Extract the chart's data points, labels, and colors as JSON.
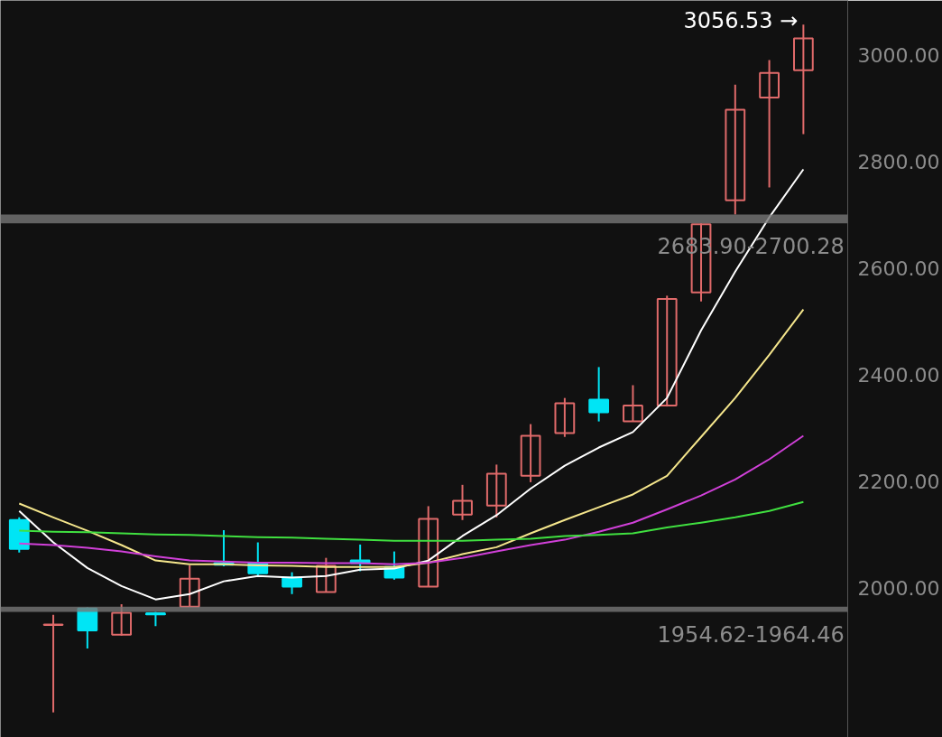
{
  "chart_data": {
    "type": "candlestick",
    "categories": [
      null,
      null,
      null,
      null,
      null,
      null,
      null,
      null,
      null,
      null,
      null,
      null,
      null,
      null,
      null,
      null,
      null,
      null,
      null,
      null,
      null,
      null,
      null,
      null
    ],
    "ohlc": [
      [
        2127,
        2132,
        2066,
        2073
      ],
      [
        1930,
        1949,
        1766,
        1931
      ],
      [
        1961,
        1963,
        1886,
        1920
      ],
      [
        1912,
        1969,
        1910,
        1953
      ],
      [
        1952,
        1954.62,
        1928,
        1950
      ],
      [
        1964.46,
        2042,
        1964.46,
        2017
      ],
      [
        2046,
        2108,
        2040,
        2043
      ],
      [
        2046,
        2085,
        2022,
        2027
      ],
      [
        2019,
        2029,
        1988,
        2002
      ],
      [
        1992,
        2056,
        1992,
        2041
      ],
      [
        2051,
        2081,
        2031,
        2046
      ],
      [
        2039,
        2068,
        2015,
        2019
      ],
      [
        2002,
        2153,
        2002,
        2129
      ],
      [
        2137,
        2193,
        2127,
        2163
      ],
      [
        2154,
        2231,
        2132,
        2214
      ],
      [
        2210,
        2307,
        2198,
        2285
      ],
      [
        2290,
        2356,
        2283,
        2346
      ],
      [
        2353,
        2414,
        2312,
        2329
      ],
      [
        2312,
        2380,
        2312,
        2342
      ],
      [
        2342,
        2548,
        2340,
        2542
      ],
      [
        2554,
        2683.9,
        2537,
        2682
      ],
      [
        2727,
        2944,
        2700.28,
        2897
      ],
      [
        2920,
        2990,
        2751,
        2966
      ],
      [
        2971,
        3056.53,
        2851,
        3031
      ]
    ],
    "colors": [
      "#00e5f5",
      "#e06a6a",
      "#00e5f5",
      "#e06a6a",
      "#00e5f5",
      "#e06a6a",
      "#00e5f5",
      "#00e5f5",
      "#00e5f5",
      "#e06a6a",
      "#00e5f5",
      "#00e5f5",
      "#e06a6a",
      "#e06a6a",
      "#e06a6a",
      "#e06a6a",
      "#e06a6a",
      "#00e5f5",
      "#e06a6a",
      "#e06a6a",
      "#e06a6a",
      "#e06a6a",
      "#e06a6a",
      "#e06a6a"
    ],
    "series": [
      {
        "type": "line",
        "color": "#ffffff",
        "values": [
          2144,
          2085,
          2037,
          2003,
          1978,
          1988,
          2012,
          2022,
          2019,
          2022,
          2034,
          2036,
          2051,
          2097,
          2136,
          2186,
          2229,
          2263,
          2292,
          2356,
          2483,
          2593,
          2695,
          2785
        ]
      },
      {
        "type": "line",
        "color": "#f5e68c",
        "values": [
          2158,
          2132,
          2107,
          2080,
          2051,
          2044,
          2044,
          2042,
          2041,
          2039,
          2039,
          2039,
          2047,
          2063,
          2076,
          2102,
          2127,
          2151,
          2175,
          2210,
          2283,
          2356,
          2437,
          2522
        ]
      },
      {
        "type": "line",
        "color": "#d040d8",
        "values": [
          2083,
          2080,
          2075,
          2068,
          2059,
          2051,
          2049,
          2047,
          2047,
          2046,
          2046,
          2044,
          2047,
          2056,
          2068,
          2080,
          2090,
          2105,
          2122,
          2147,
          2173,
          2203,
          2241,
          2285
        ]
      },
      {
        "type": "line",
        "color": "#40e040",
        "values": [
          2107,
          2105,
          2104,
          2102,
          2100,
          2099,
          2097,
          2095,
          2094,
          2092,
          2090,
          2088,
          2088,
          2088,
          2090,
          2092,
          2097,
          2099,
          2102,
          2113,
          2122,
          2132,
          2144,
          2161
        ]
      }
    ],
    "ylim": [
      1719,
      3102
    ],
    "yticks": [
      {
        "value": 2000,
        "label": "2000.00"
      },
      {
        "value": 2200,
        "label": "2200.00"
      },
      {
        "value": 2400,
        "label": "2400.00"
      },
      {
        "value": 2600,
        "label": "2600.00"
      },
      {
        "value": 2800,
        "label": "2800.00"
      },
      {
        "value": 3000,
        "label": "3000.00"
      }
    ],
    "bands": [
      {
        "axis": "y",
        "from": 2683.9,
        "to": 2700.28,
        "label": "2683.90-2700.28",
        "color": "#777777"
      },
      {
        "axis": "y",
        "from": 1954.62,
        "to": 1964.46,
        "label": "1954.62-1964.46",
        "color": "#777777"
      }
    ],
    "annotations": [
      "3056.53 →"
    ],
    "tick_labels": "y",
    "grid": false
  }
}
